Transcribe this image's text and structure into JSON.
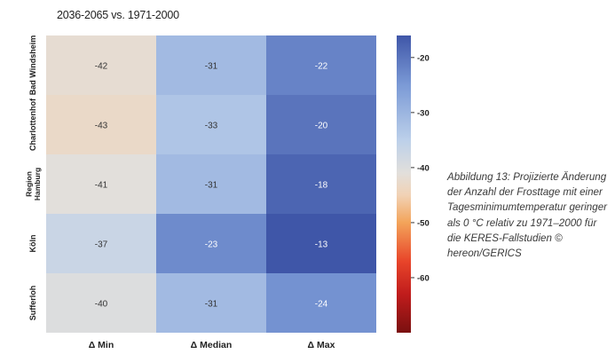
{
  "chart_data": {
    "type": "heatmap",
    "title": "2036-2065 vs. 1971-2000",
    "rows": [
      "Bad Windsheim",
      "Charlottenhof",
      "Region Hamburg",
      "Köln",
      "Sufferloh"
    ],
    "row_label_lines": [
      [
        "Bad Windsheim"
      ],
      [
        "Charlottenhof"
      ],
      [
        "Region",
        "Hamburg"
      ],
      [
        "Köln"
      ],
      [
        "Sufferloh"
      ]
    ],
    "columns": [
      "Δ Min",
      "Δ Median",
      "Δ Max"
    ],
    "values": [
      [
        -42,
        -31,
        -22
      ],
      [
        -43,
        -33,
        -20
      ],
      [
        -41,
        -31,
        -18
      ],
      [
        -37,
        -23,
        -13
      ],
      [
        -40,
        -31,
        -24
      ]
    ],
    "colorbar": {
      "min": -70,
      "max": -16,
      "ticks": [
        -20,
        -30,
        -40,
        -50,
        -60
      ],
      "tick_labels": [
        "-20",
        "-30",
        "-40",
        "-50",
        "-60"
      ],
      "colormap": [
        [
          -16,
          "#3f56a8"
        ],
        [
          -25,
          "#7b9ad6"
        ],
        [
          -35,
          "#bcd0ea"
        ],
        [
          -41,
          "#e2dfdb"
        ],
        [
          -45,
          "#f1d2b5"
        ],
        [
          -50,
          "#f3a45a"
        ],
        [
          -57,
          "#e8452a"
        ],
        [
          -63,
          "#c01c1c"
        ],
        [
          -70,
          "#7a1010"
        ]
      ]
    }
  },
  "caption": "Abbildung 13: Projizierte Änderung der Anzahl der Frosttage mit einer Tagesminimumtemperatur geringer als 0 °C relativ zu 1971–2000 für die KERES-Fallstudien © hereon/GERICS"
}
